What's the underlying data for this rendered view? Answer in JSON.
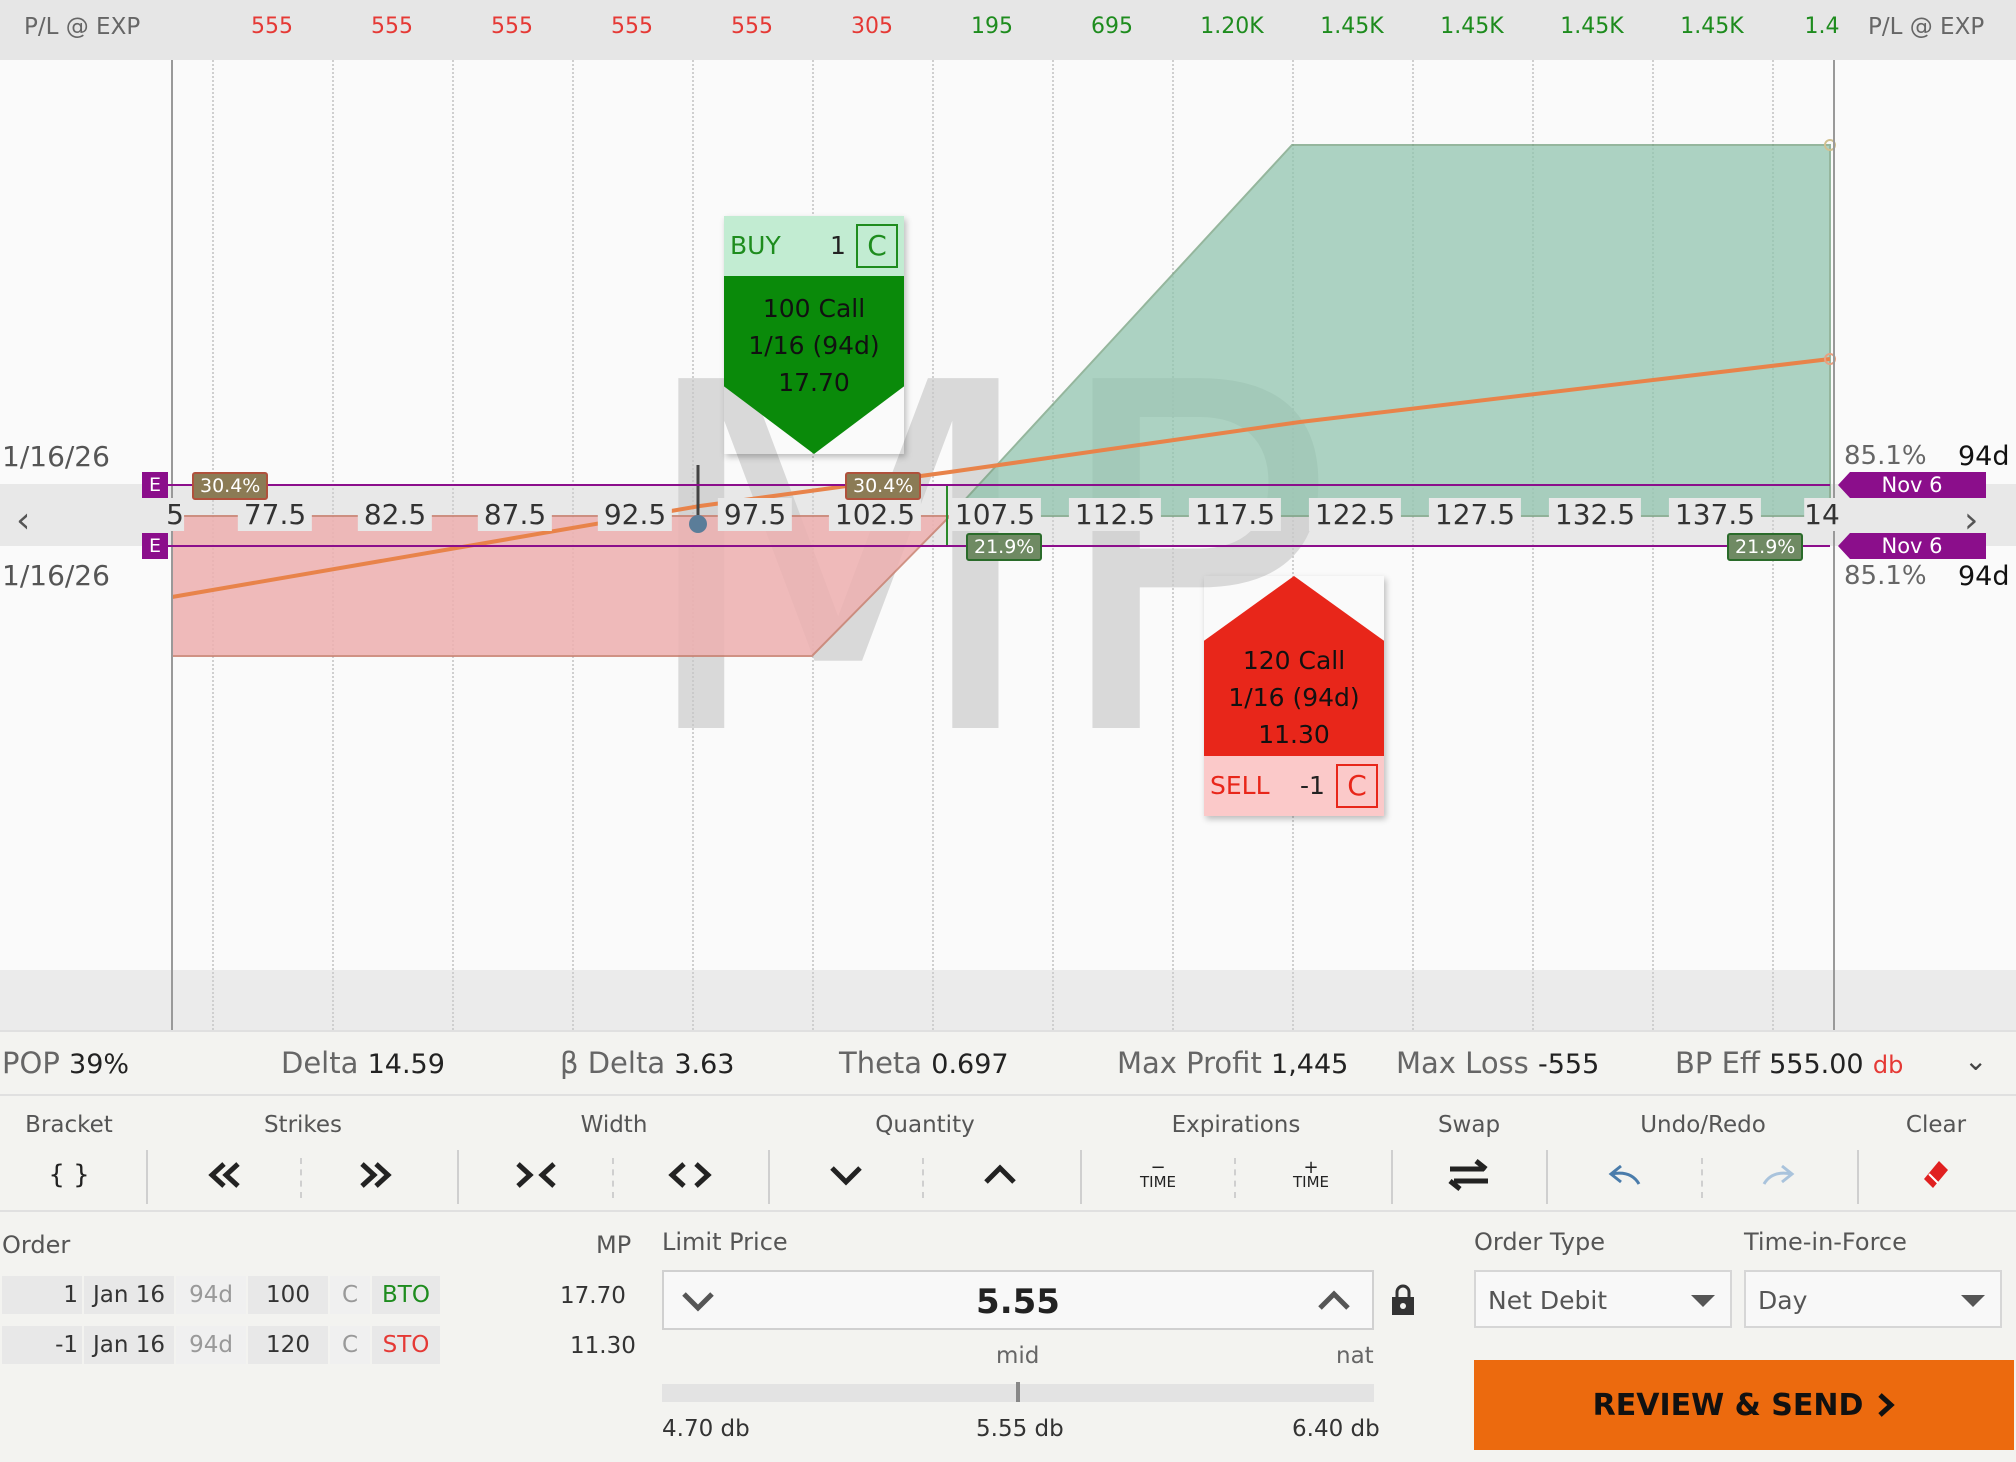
{
  "pl_strip": {
    "label_left": "P/L @ EXP",
    "label_right": "P/L @ EXP",
    "values": [
      {
        "text": "555",
        "sign": "neg"
      },
      {
        "text": "555",
        "sign": "neg"
      },
      {
        "text": "555",
        "sign": "neg"
      },
      {
        "text": "555",
        "sign": "neg"
      },
      {
        "text": "555",
        "sign": "neg"
      },
      {
        "text": "305",
        "sign": "neg"
      },
      {
        "text": "195",
        "sign": "pos"
      },
      {
        "text": "695",
        "sign": "pos"
      },
      {
        "text": "1.20K",
        "sign": "pos"
      },
      {
        "text": "1.45K",
        "sign": "pos"
      },
      {
        "text": "1.45K",
        "sign": "pos"
      },
      {
        "text": "1.45K",
        "sign": "pos"
      },
      {
        "text": "1.45K",
        "sign": "pos"
      },
      {
        "text": "1.4",
        "sign": "pos"
      }
    ]
  },
  "chart": {
    "watermark": "MP",
    "strikes": [
      "5",
      "77.5",
      "82.5",
      "87.5",
      "92.5",
      "97.5",
      "102.5",
      "107.5",
      "112.5",
      "117.5",
      "122.5",
      "127.5",
      "132.5",
      "137.5",
      "14"
    ],
    "exp_date_top": "1/16/26",
    "exp_date_bottom": "1/16/26",
    "prob_top": "85.1%",
    "prob_bottom": "85.1%",
    "days_top": "94d",
    "days_bottom": "94d",
    "e_marker": "E",
    "nov_top": "Nov 6",
    "nov_bottom": "Nov 6",
    "badges": {
      "b1": "30.4%",
      "b2": "30.4%",
      "b3": "21.9%",
      "b4": "21.9%"
    }
  },
  "legs": {
    "buy": {
      "action": "BUY",
      "qty": "1",
      "type": "C",
      "desc": "100 Call",
      "exp": "1/16 (94d)",
      "price": "17.70"
    },
    "sell": {
      "action": "SELL",
      "qty": "-1",
      "type": "C",
      "desc": "120 Call",
      "exp": "1/16 (94d)",
      "price": "11.30"
    }
  },
  "stats": {
    "pop_label": "POP",
    "pop": "39%",
    "delta_label": "Delta",
    "delta": "14.59",
    "bdelta_label": "β Delta",
    "bdelta": "3.63",
    "theta_label": "Theta",
    "theta": "0.697",
    "maxp_label": "Max Profit",
    "maxp": "1,445",
    "maxl_label": "Max Loss",
    "maxl": "-555",
    "bp_label": "BP Eff",
    "bp": "555.00",
    "bp_unit": "db"
  },
  "toolbar": {
    "bracket": "Bracket",
    "strikes": "Strikes",
    "width": "Width",
    "quantity": "Quantity",
    "expirations": "Expirations",
    "swap": "Swap",
    "undo_redo": "Undo/Redo",
    "clear": "Clear",
    "bracket_icon": "{ }",
    "time": "TIME",
    "minus": "−",
    "plus": "+"
  },
  "order": {
    "order_label": "Order",
    "mp_label": "MP",
    "rows": [
      {
        "qty": "1",
        "date": "Jan 16",
        "days": "94d",
        "strike": "100",
        "type": "C",
        "action": "BTO",
        "mp": "17.70"
      },
      {
        "qty": "-1",
        "date": "Jan 16",
        "days": "94d",
        "strike": "120",
        "type": "C",
        "action": "STO",
        "mp": "11.30"
      }
    ],
    "limit_label": "Limit Price",
    "limit_value": "5.55",
    "mid_label": "mid",
    "nat_label": "nat",
    "low": "4.70 db",
    "mid": "5.55 db",
    "high": "6.40 db",
    "order_type_label": "Order Type",
    "order_type": "Net Debit",
    "tif_label": "Time-in-Force",
    "tif": "Day",
    "review": "REVIEW & SEND"
  },
  "colors": {
    "accent": "#ec6a0e",
    "buy": "#0a8a0a",
    "sell": "#e8261a",
    "profit": "#8fc4ad",
    "loss": "#eeb0b0",
    "purple": "#8b0e8b"
  }
}
